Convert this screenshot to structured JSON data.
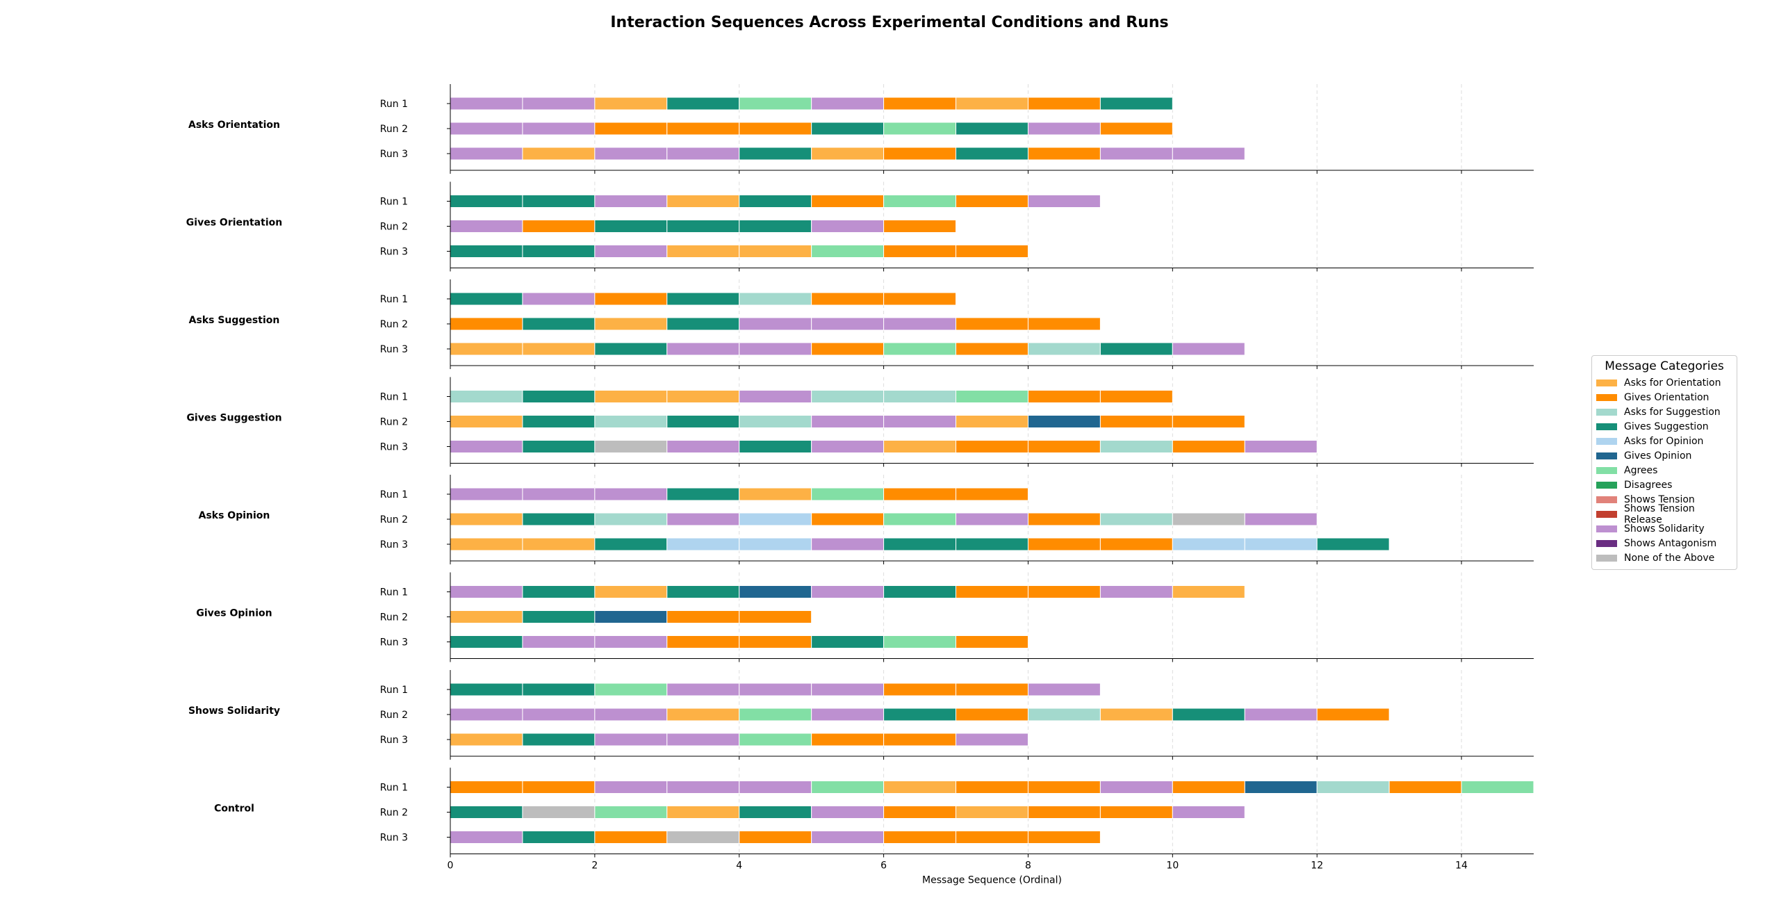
{
  "chart_data": {
    "type": "broken-barh",
    "title": "Interaction Sequences Across Experimental Conditions and Runs",
    "xlabel": "Message Sequence (Ordinal)",
    "xlim": [
      0,
      15
    ],
    "xticks": [
      0,
      2,
      4,
      6,
      8,
      10,
      12,
      14
    ],
    "grid": "vertical dashed",
    "legend": {
      "title": "Message Categories",
      "placement": "right",
      "entries": [
        {
          "key": "AO",
          "label": "Asks for Orientation",
          "color": "#FDB145"
        },
        {
          "key": "GO",
          "label": "Gives Orientation",
          "color": "#FF8C00"
        },
        {
          "key": "AS",
          "label": "Asks for Suggestion",
          "color": "#A3D9CD"
        },
        {
          "key": "GS",
          "label": "Gives Suggestion",
          "color": "#168F78"
        },
        {
          "key": "AOp",
          "label": "Asks for Opinion",
          "color": "#AFD4EF"
        },
        {
          "key": "GOp",
          "label": "Gives Opinion",
          "color": "#206690"
        },
        {
          "key": "AG",
          "label": "Agrees",
          "color": "#82DFA5"
        },
        {
          "key": "DG",
          "label": "Disagrees",
          "color": "#26A25A"
        },
        {
          "key": "ST",
          "label": "Shows Tension",
          "color": "#E1827A"
        },
        {
          "key": "STR",
          "label": "Shows Tension Release",
          "color": "#C23F2F"
        },
        {
          "key": "SS",
          "label": "Shows Solidarity",
          "color": "#BD90D0"
        },
        {
          "key": "SA",
          "label": "Shows Antagonism",
          "color": "#6A2E82"
        },
        {
          "key": "NA",
          "label": "None of the Above",
          "color": "#BDBDBD"
        }
      ]
    },
    "conditions": [
      {
        "name": "Asks Orientation",
        "runs": [
          {
            "label": "Run 1",
            "sequence": [
              "SS",
              "SS",
              "AO",
              "GS",
              "AG",
              "SS",
              "GO",
              "AO",
              "GO",
              "GS"
            ]
          },
          {
            "label": "Run 2",
            "sequence": [
              "SS",
              "SS",
              "GO",
              "GO",
              "GO",
              "GS",
              "AG",
              "GS",
              "SS",
              "GO"
            ]
          },
          {
            "label": "Run 3",
            "sequence": [
              "SS",
              "AO",
              "SS",
              "SS",
              "GS",
              "AO",
              "GO",
              "GS",
              "GO",
              "SS",
              "SS"
            ]
          }
        ]
      },
      {
        "name": "Gives Orientation",
        "runs": [
          {
            "label": "Run 1",
            "sequence": [
              "GS",
              "GS",
              "SS",
              "AO",
              "GS",
              "GO",
              "AG",
              "GO",
              "SS"
            ]
          },
          {
            "label": "Run 2",
            "sequence": [
              "SS",
              "GO",
              "GS",
              "GS",
              "GS",
              "SS",
              "GO"
            ]
          },
          {
            "label": "Run 3",
            "sequence": [
              "GS",
              "GS",
              "SS",
              "AO",
              "AO",
              "AG",
              "GO",
              "GO"
            ]
          }
        ]
      },
      {
        "name": "Asks Suggestion",
        "runs": [
          {
            "label": "Run 1",
            "sequence": [
              "GS",
              "SS",
              "GO",
              "GS",
              "AS",
              "GO",
              "GO"
            ]
          },
          {
            "label": "Run 2",
            "sequence": [
              "GO",
              "GS",
              "AO",
              "GS",
              "SS",
              "SS",
              "SS",
              "GO",
              "GO"
            ]
          },
          {
            "label": "Run 3",
            "sequence": [
              "AO",
              "AO",
              "GS",
              "SS",
              "SS",
              "GO",
              "AG",
              "GO",
              "AS",
              "GS",
              "SS"
            ]
          }
        ]
      },
      {
        "name": "Gives Suggestion",
        "runs": [
          {
            "label": "Run 1",
            "sequence": [
              "AS",
              "GS",
              "AO",
              "AO",
              "SS",
              "AS",
              "AS",
              "AG",
              "GO",
              "GO"
            ]
          },
          {
            "label": "Run 2",
            "sequence": [
              "AO",
              "GS",
              "AS",
              "GS",
              "AS",
              "SS",
              "SS",
              "AO",
              "GOp",
              "GO",
              "GO"
            ]
          },
          {
            "label": "Run 3",
            "sequence": [
              "SS",
              "GS",
              "NA",
              "SS",
              "GS",
              "SS",
              "AO",
              "GO",
              "GO",
              "AS",
              "GO",
              "SS"
            ]
          }
        ]
      },
      {
        "name": "Asks Opinion",
        "runs": [
          {
            "label": "Run 1",
            "sequence": [
              "SS",
              "SS",
              "SS",
              "GS",
              "AO",
              "AG",
              "GO",
              "GO"
            ]
          },
          {
            "label": "Run 2",
            "sequence": [
              "AO",
              "GS",
              "AS",
              "SS",
              "AOp",
              "GO",
              "AG",
              "SS",
              "GO",
              "AS",
              "NA",
              "SS"
            ]
          },
          {
            "label": "Run 3",
            "sequence": [
              "AO",
              "AO",
              "GS",
              "AOp",
              "AOp",
              "SS",
              "GS",
              "GS",
              "GO",
              "GO",
              "AOp",
              "AOp",
              "GS"
            ]
          }
        ]
      },
      {
        "name": "Gives Opinion",
        "runs": [
          {
            "label": "Run 1",
            "sequence": [
              "SS",
              "GS",
              "AO",
              "GS",
              "GOp",
              "SS",
              "GS",
              "GO",
              "GO",
              "SS",
              "AO"
            ]
          },
          {
            "label": "Run 2",
            "sequence": [
              "AO",
              "GS",
              "GOp",
              "GO",
              "GO"
            ]
          },
          {
            "label": "Run 3",
            "sequence": [
              "GS",
              "SS",
              "SS",
              "GO",
              "GO",
              "GS",
              "AG",
              "GO"
            ]
          }
        ]
      },
      {
        "name": "Shows Solidarity",
        "runs": [
          {
            "label": "Run 1",
            "sequence": [
              "GS",
              "GS",
              "AG",
              "SS",
              "SS",
              "SS",
              "GO",
              "GO",
              "SS"
            ]
          },
          {
            "label": "Run 2",
            "sequence": [
              "SS",
              "SS",
              "SS",
              "AO",
              "AG",
              "SS",
              "GS",
              "GO",
              "AS",
              "AO",
              "GS",
              "SS",
              "GO"
            ]
          },
          {
            "label": "Run 3",
            "sequence": [
              "AO",
              "GS",
              "SS",
              "SS",
              "AG",
              "GO",
              "GO",
              "SS"
            ]
          }
        ]
      },
      {
        "name": "Control",
        "runs": [
          {
            "label": "Run 1",
            "sequence": [
              "GO",
              "GO",
              "SS",
              "SS",
              "SS",
              "AG",
              "AO",
              "GO",
              "GO",
              "SS",
              "GO",
              "GOp",
              "AS",
              "GO",
              "AG"
            ]
          },
          {
            "label": "Run 2",
            "sequence": [
              "GS",
              "NA",
              "AG",
              "AO",
              "GS",
              "SS",
              "GO",
              "AO",
              "GO",
              "GO",
              "SS"
            ]
          },
          {
            "label": "Run 3",
            "sequence": [
              "SS",
              "GS",
              "GO",
              "NA",
              "GO",
              "SS",
              "GO",
              "GO",
              "GO"
            ]
          }
        ]
      }
    ]
  }
}
